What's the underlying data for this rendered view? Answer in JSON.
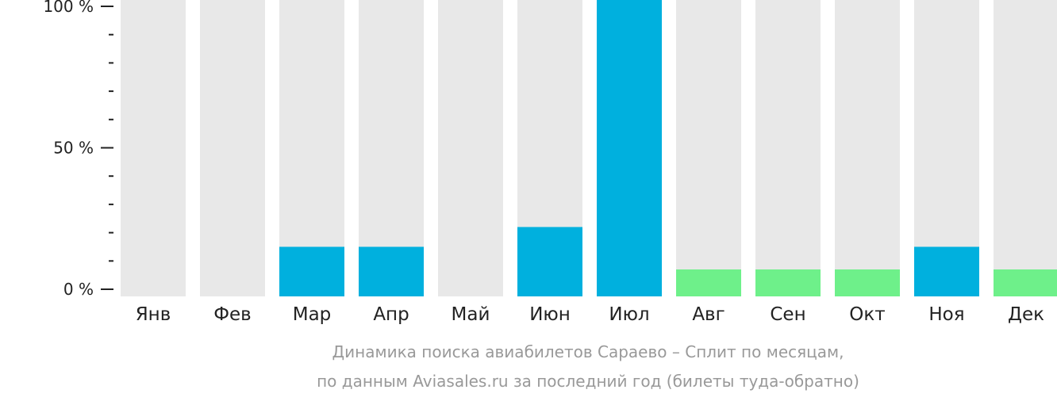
{
  "chart_data": {
    "type": "bar",
    "categories": [
      "Янв",
      "Фев",
      "Мар",
      "Апр",
      "Май",
      "Июн",
      "Июл",
      "Авг",
      "Сен",
      "Окт",
      "Ноя",
      "Дек"
    ],
    "values": [
      0,
      0,
      15,
      15,
      0,
      22,
      100,
      7,
      7,
      7,
      15,
      7
    ],
    "colors": [
      "#00b0de",
      "#00b0de",
      "#00b0de",
      "#00b0de",
      "#00b0de",
      "#00b0de",
      "#00b0de",
      "#6ef08a",
      "#6ef08a",
      "#6ef08a",
      "#00b0de",
      "#6ef08a"
    ],
    "track_color": "#e8e8e8",
    "ylim": [
      0,
      100
    ],
    "yticks": [
      {
        "value": 100,
        "label": "100 %"
      },
      {
        "value": 50,
        "label": "50 %"
      },
      {
        "value": 0,
        "label": "0 %"
      }
    ],
    "minor_ticks": [
      10,
      20,
      30,
      40,
      60,
      70,
      80,
      90
    ],
    "caption_line1": "Динамика поиска авиабилетов Сараево – Сплит по месяцам,",
    "caption_line2": "по данным Aviasales.ru за последний год (билеты туда-обратно)",
    "grid": false,
    "legend": "none"
  }
}
